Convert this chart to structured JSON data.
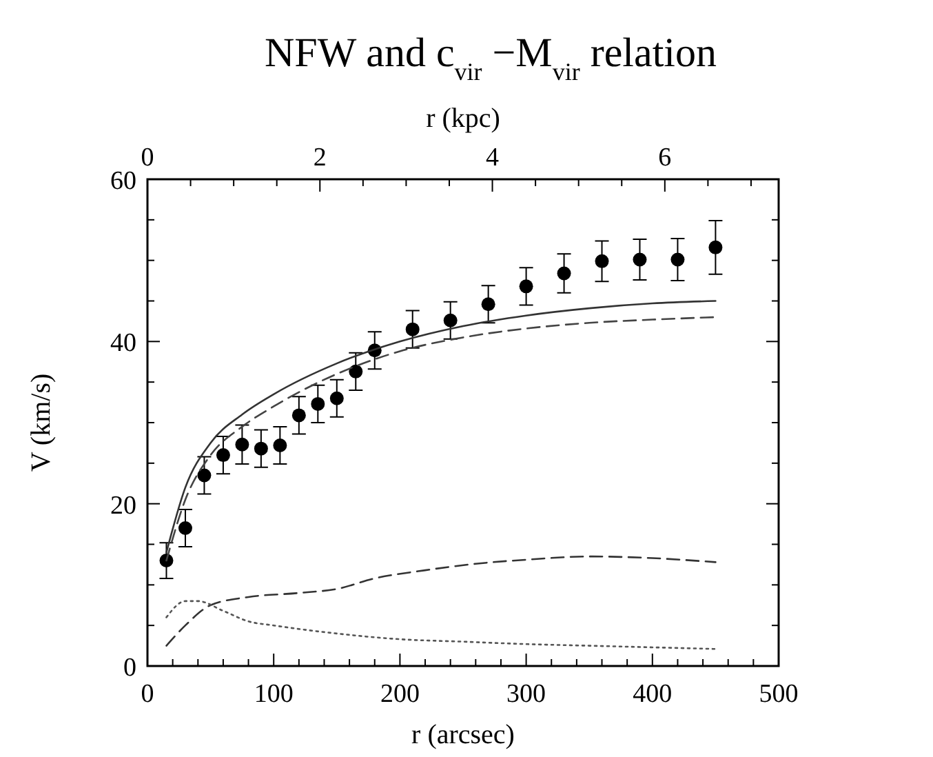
{
  "chart_data": {
    "type": "line",
    "title": "NFW and c$_{vir}$ −M$_{vir}$ relation",
    "xlabel": "r (arcsec)",
    "ylabel": "V (km/s)",
    "x2label": "r (kpc)",
    "xlim": [
      0,
      500
    ],
    "xticks": [
      0,
      {
        "value": 20,
        "label": null
      },
      {
        "value": 40,
        "label": null
      },
      {
        "value": 60,
        "label": null
      },
      {
        "value": 80,
        "label": null
      },
      100,
      {
        "value": 120,
        "label": null
      },
      {
        "value": 140,
        "label": null
      },
      {
        "value": 160,
        "label": null
      },
      {
        "value": 180,
        "label": null
      },
      200,
      {
        "value": 220,
        "label": null
      },
      {
        "value": 240,
        "label": null
      },
      {
        "value": 260,
        "label": null
      },
      {
        "value": 280,
        "label": null
      },
      300,
      {
        "value": 320,
        "label": null
      },
      {
        "value": 340,
        "label": null
      },
      {
        "value": 360,
        "label": null
      },
      {
        "value": 380,
        "label": null
      },
      400,
      {
        "value": 420,
        "label": null
      },
      {
        "value": 440,
        "label": null
      },
      {
        "value": 460,
        "label": null
      },
      {
        "value": 480,
        "label": null
      },
      500
    ],
    "x2lim": [
      0,
      7.32
    ],
    "x2ticks": [
      0,
      {
        "value": 0.5,
        "label": null
      },
      {
        "value": 1,
        "label": null
      },
      {
        "value": 1.5,
        "label": null
      },
      2,
      {
        "value": 2.5,
        "label": null
      },
      {
        "value": 3,
        "label": null
      },
      {
        "value": 3.5,
        "label": null
      },
      4,
      {
        "value": 4.5,
        "label": null
      },
      {
        "value": 5,
        "label": null
      },
      {
        "value": 5.5,
        "label": null
      },
      6,
      {
        "value": 6.5,
        "label": null
      },
      {
        "value": 7,
        "label": null
      }
    ],
    "ylim": [
      0,
      60
    ],
    "yticks": [
      0,
      {
        "value": 5,
        "label": null
      },
      {
        "value": 10,
        "label": null
      },
      {
        "value": 15,
        "label": null
      },
      20,
      {
        "value": 25,
        "label": null
      },
      {
        "value": 30,
        "label": null
      },
      {
        "value": 35,
        "label": null
      },
      40,
      {
        "value": 45,
        "label": null
      },
      {
        "value": 50,
        "label": null
      },
      {
        "value": 55,
        "label": null
      },
      60
    ],
    "grid": false,
    "series": [
      {
        "type": "scatter",
        "color": "#000000",
        "marker": "circle",
        "x": [
          15,
          30,
          45,
          60,
          75,
          90,
          105,
          120,
          135,
          150,
          165,
          180,
          210,
          240,
          270,
          300,
          330,
          360,
          390,
          420,
          450
        ],
        "values": [
          13,
          17,
          23.5,
          26,
          27.3,
          26.8,
          27.2,
          30.9,
          32.3,
          33,
          36.3,
          38.9,
          41.5,
          42.6,
          44.6,
          46.8,
          48.4,
          49.9,
          50.1,
          50.1,
          51.6
        ],
        "errors": [
          2.2,
          2.3,
          2.3,
          2.3,
          2.4,
          2.3,
          2.3,
          2.3,
          2.3,
          2.3,
          2.3,
          2.3,
          2.3,
          2.3,
          2.3,
          2.3,
          2.4,
          2.5,
          2.5,
          2.6,
          3.3
        ]
      },
      {
        "color": "#333333",
        "line_style": "solid",
        "x": [
          15,
          30,
          50,
          75,
          100,
          150,
          200,
          250,
          300,
          350,
          400,
          450
        ],
        "values": [
          14,
          22,
          27.5,
          31,
          33.5,
          37.3,
          40,
          41.9,
          43.2,
          44.1,
          44.7,
          45
        ]
      },
      {
        "color": "#444444",
        "line_style": "dashed",
        "x": [
          15,
          30,
          50,
          75,
          100,
          150,
          200,
          250,
          300,
          350,
          400,
          450
        ],
        "values": [
          13,
          20.5,
          26,
          29.5,
          32,
          36,
          38.8,
          40.5,
          41.6,
          42.3,
          42.7,
          43
        ]
      },
      {
        "color": "#333333",
        "line_style": "dashed",
        "x": [
          15,
          30,
          50,
          80,
          120,
          150,
          180,
          220,
          260,
          300,
          350,
          400,
          450
        ],
        "values": [
          2.5,
          5,
          7.5,
          8.5,
          9,
          9.5,
          10.8,
          11.8,
          12.6,
          13.1,
          13.5,
          13.3,
          12.8
        ]
      },
      {
        "color": "#555555",
        "line_style": "dotted",
        "x": [
          15,
          30,
          40,
          60,
          80,
          100,
          150,
          200,
          250,
          300,
          350,
          400,
          450
        ],
        "values": [
          6,
          8,
          8,
          6.8,
          5.5,
          5,
          4,
          3.3,
          3,
          2.7,
          2.5,
          2.3,
          2.1
        ]
      }
    ]
  }
}
